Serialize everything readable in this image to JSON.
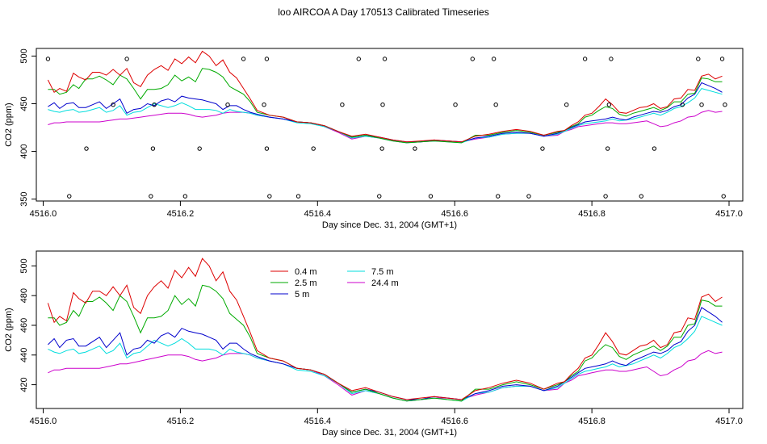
{
  "title": "loo AIRCOA A  Day 170513  Calibrated Timeseries",
  "colors": {
    "0.4 m": "#dd0000",
    "2.5 m": "#00aa00",
    "5 m": "#0000cc",
    "7.5 m": "#00dddd",
    "24.4 m": "#cc00cc"
  },
  "chart_data": [
    {
      "type": "line",
      "title": "",
      "xlabel": "Day since Dec. 31, 2004 (GMT+1)",
      "ylabel": "CO2 (ppm)",
      "xlim": [
        4515.99,
        4517.02
      ],
      "ylim": [
        348,
        508
      ],
      "xticks": [
        "4516.0",
        "4516.2",
        "4516.4",
        "4516.6",
        "4516.8",
        "4517.0"
      ],
      "yticks": [
        "350",
        "400",
        "450",
        "500"
      ],
      "grid": false,
      "legend": "none",
      "series": [
        {
          "name": "0.4 m",
          "x": [
            4516.007,
            4516.016,
            4516.024,
            4516.034,
            4516.044,
            4516.052,
            4516.062,
            4516.072,
            4516.082,
            4516.092,
            4516.102,
            4516.112,
            4516.122,
            4516.132,
            4516.142,
            4516.152,
            4516.162,
            4516.172,
            4516.182,
            4516.192,
            4516.202,
            4516.212,
            4516.222,
            4516.232,
            4516.242,
            4516.252,
            4516.262,
            4516.272,
            4516.282,
            4516.292,
            4516.302,
            4516.312,
            4516.33,
            4516.35,
            4516.37,
            4516.39,
            4516.41,
            4516.43,
            4516.45,
            4516.47,
            4516.49,
            4516.51,
            4516.53,
            4516.55,
            4516.57,
            4516.59,
            4516.61,
            4516.63,
            4516.65,
            4516.67,
            4516.69,
            4516.71,
            4516.73,
            4516.75,
            4516.76,
            4516.77,
            4516.78,
            4516.79,
            4516.8,
            4516.81,
            4516.82,
            4516.83,
            4516.84,
            4516.85,
            4516.86,
            4516.87,
            4516.88,
            4516.89,
            4516.9,
            4516.91,
            4516.92,
            4516.93,
            4516.94,
            4516.95,
            4516.96,
            4516.97,
            4516.98,
            4516.99
          ],
          "y": [
            475,
            462,
            466,
            463,
            482,
            478,
            475,
            483,
            483,
            480,
            486,
            480,
            487,
            472,
            468,
            480,
            486,
            490,
            485,
            497,
            492,
            499,
            493,
            505,
            500,
            490,
            496,
            483,
            477,
            466,
            455,
            443,
            438,
            436,
            431,
            430,
            427,
            421,
            416,
            418,
            415,
            412,
            410,
            411,
            412,
            411,
            410,
            416,
            418,
            421,
            423,
            421,
            417,
            421,
            422,
            427,
            431,
            438,
            440,
            447,
            455,
            449,
            441,
            440,
            443,
            446,
            447,
            450,
            445,
            447,
            455,
            456,
            465,
            464,
            479,
            481,
            476,
            479
          ]
        },
        {
          "name": "2.5 m",
          "x": [
            4516.007,
            4516.016,
            4516.024,
            4516.034,
            4516.044,
            4516.052,
            4516.062,
            4516.072,
            4516.082,
            4516.092,
            4516.102,
            4516.112,
            4516.122,
            4516.132,
            4516.142,
            4516.152,
            4516.162,
            4516.172,
            4516.182,
            4516.192,
            4516.202,
            4516.212,
            4516.222,
            4516.232,
            4516.242,
            4516.252,
            4516.262,
            4516.272,
            4516.282,
            4516.292,
            4516.302,
            4516.312,
            4516.33,
            4516.35,
            4516.37,
            4516.39,
            4516.41,
            4516.43,
            4516.45,
            4516.47,
            4516.49,
            4516.51,
            4516.53,
            4516.55,
            4516.57,
            4516.59,
            4516.61,
            4516.63,
            4516.65,
            4516.67,
            4516.69,
            4516.71,
            4516.73,
            4516.75,
            4516.76,
            4516.77,
            4516.78,
            4516.79,
            4516.8,
            4516.81,
            4516.82,
            4516.83,
            4516.84,
            4516.85,
            4516.86,
            4516.87,
            4516.88,
            4516.89,
            4516.9,
            4516.91,
            4516.92,
            4516.93,
            4516.94,
            4516.95,
            4516.96,
            4516.97,
            4516.98,
            4516.99
          ],
          "y": [
            465,
            465,
            460,
            462,
            470,
            466,
            476,
            476,
            479,
            475,
            470,
            480,
            476,
            466,
            455,
            465,
            465,
            466,
            470,
            480,
            474,
            478,
            473,
            487,
            486,
            483,
            478,
            468,
            464,
            460,
            452,
            441,
            438,
            436,
            431,
            430,
            427,
            421,
            415,
            417,
            414,
            411,
            409,
            410,
            411,
            410,
            409,
            417,
            417,
            420,
            422,
            420,
            417,
            420,
            422,
            426,
            429,
            436,
            438,
            443,
            447,
            445,
            439,
            437,
            440,
            442,
            444,
            446,
            443,
            446,
            452,
            452,
            460,
            461,
            477,
            476,
            473,
            473
          ]
        },
        {
          "name": "5 m",
          "x": [
            4516.007,
            4516.016,
            4516.024,
            4516.034,
            4516.044,
            4516.052,
            4516.062,
            4516.072,
            4516.082,
            4516.092,
            4516.102,
            4516.112,
            4516.122,
            4516.132,
            4516.142,
            4516.152,
            4516.162,
            4516.172,
            4516.182,
            4516.192,
            4516.202,
            4516.212,
            4516.222,
            4516.232,
            4516.242,
            4516.252,
            4516.262,
            4516.272,
            4516.282,
            4516.292,
            4516.302,
            4516.312,
            4516.33,
            4516.35,
            4516.37,
            4516.39,
            4516.41,
            4516.43,
            4516.45,
            4516.47,
            4516.49,
            4516.51,
            4516.53,
            4516.55,
            4516.57,
            4516.59,
            4516.61,
            4516.63,
            4516.65,
            4516.67,
            4516.69,
            4516.71,
            4516.73,
            4516.75,
            4516.76,
            4516.77,
            4516.78,
            4516.79,
            4516.8,
            4516.81,
            4516.82,
            4516.83,
            4516.84,
            4516.85,
            4516.86,
            4516.87,
            4516.88,
            4516.89,
            4516.9,
            4516.91,
            4516.92,
            4516.93,
            4516.94,
            4516.95,
            4516.96,
            4516.97,
            4516.98,
            4516.99
          ],
          "y": [
            447,
            451,
            445,
            450,
            451,
            446,
            446,
            449,
            452,
            445,
            450,
            455,
            440,
            444,
            445,
            450,
            448,
            453,
            455,
            452,
            458,
            456,
            455,
            454,
            452,
            450,
            444,
            448,
            448,
            444,
            441,
            439,
            436,
            434,
            431,
            430,
            427,
            421,
            415,
            417,
            415,
            412,
            410,
            410,
            412,
            411,
            410,
            414,
            416,
            419,
            420,
            419,
            416,
            419,
            422,
            425,
            428,
            431,
            432,
            433,
            434,
            436,
            434,
            433,
            436,
            438,
            440,
            442,
            441,
            443,
            447,
            449,
            456,
            460,
            472,
            469,
            466,
            462
          ]
        },
        {
          "name": "7.5 m",
          "x": [
            4516.007,
            4516.016,
            4516.024,
            4516.034,
            4516.044,
            4516.052,
            4516.062,
            4516.072,
            4516.082,
            4516.092,
            4516.102,
            4516.112,
            4516.122,
            4516.132,
            4516.142,
            4516.152,
            4516.162,
            4516.172,
            4516.182,
            4516.192,
            4516.202,
            4516.212,
            4516.222,
            4516.232,
            4516.242,
            4516.252,
            4516.262,
            4516.272,
            4516.282,
            4516.292,
            4516.302,
            4516.312,
            4516.33,
            4516.35,
            4516.37,
            4516.39,
            4516.41,
            4516.43,
            4516.45,
            4516.47,
            4516.49,
            4516.51,
            4516.53,
            4516.55,
            4516.57,
            4516.59,
            4516.61,
            4516.63,
            4516.65,
            4516.67,
            4516.69,
            4516.71,
            4516.73,
            4516.75,
            4516.76,
            4516.77,
            4516.78,
            4516.79,
            4516.8,
            4516.81,
            4516.82,
            4516.83,
            4516.84,
            4516.85,
            4516.86,
            4516.87,
            4516.88,
            4516.89,
            4516.9,
            4516.91,
            4516.92,
            4516.93,
            4516.94,
            4516.95,
            4516.96,
            4516.97,
            4516.98,
            4516.99
          ],
          "y": [
            444,
            442,
            441,
            443,
            444,
            441,
            442,
            444,
            446,
            441,
            443,
            448,
            438,
            441,
            442,
            446,
            450,
            448,
            446,
            448,
            451,
            448,
            444,
            444,
            444,
            443,
            440,
            444,
            442,
            441,
            440,
            438,
            436,
            434,
            430,
            429,
            426,
            421,
            414,
            416,
            414,
            411,
            409,
            410,
            411,
            410,
            409,
            414,
            415,
            418,
            419,
            419,
            416,
            418,
            421,
            424,
            427,
            429,
            430,
            431,
            432,
            434,
            432,
            433,
            434,
            436,
            438,
            440,
            438,
            441,
            445,
            447,
            451,
            456,
            466,
            464,
            462,
            460
          ]
        },
        {
          "name": "24.4 m",
          "x": [
            4516.007,
            4516.016,
            4516.024,
            4516.034,
            4516.044,
            4516.052,
            4516.062,
            4516.072,
            4516.082,
            4516.092,
            4516.102,
            4516.112,
            4516.122,
            4516.132,
            4516.142,
            4516.152,
            4516.162,
            4516.172,
            4516.182,
            4516.192,
            4516.202,
            4516.212,
            4516.222,
            4516.232,
            4516.242,
            4516.252,
            4516.262,
            4516.272,
            4516.282,
            4516.292,
            4516.302,
            4516.312,
            4516.33,
            4516.35,
            4516.37,
            4516.39,
            4516.41,
            4516.43,
            4516.45,
            4516.47,
            4516.49,
            4516.51,
            4516.53,
            4516.55,
            4516.57,
            4516.59,
            4516.61,
            4516.63,
            4516.65,
            4516.67,
            4516.69,
            4516.71,
            4516.73,
            4516.75,
            4516.76,
            4516.77,
            4516.78,
            4516.79,
            4516.8,
            4516.81,
            4516.82,
            4516.83,
            4516.84,
            4516.85,
            4516.86,
            4516.87,
            4516.88,
            4516.89,
            4516.9,
            4516.91,
            4516.92,
            4516.93,
            4516.94,
            4516.95,
            4516.96,
            4516.97,
            4516.98,
            4516.99
          ],
          "y": [
            428,
            430,
            430,
            431,
            431,
            431,
            431,
            431,
            431,
            432,
            433,
            434,
            434,
            435,
            436,
            437,
            438,
            439,
            440,
            440,
            440,
            439,
            437,
            436,
            437,
            438,
            440,
            441,
            441,
            441,
            440,
            438,
            436,
            434,
            431,
            430,
            426,
            420,
            413,
            416,
            414,
            411,
            409,
            410,
            411,
            411,
            410,
            413,
            415,
            418,
            419,
            419,
            416,
            417,
            421,
            423,
            426,
            427,
            428,
            429,
            430,
            430,
            429,
            429,
            430,
            431,
            432,
            429,
            426,
            427,
            430,
            432,
            436,
            437,
            441,
            443,
            441,
            442
          ]
        },
        {
          "name": "",
          "type": "scatter",
          "x": [
            4516.007,
            4516.038,
            4516.063,
            4516.102,
            4516.122,
            4516.157,
            4516.16,
            4516.162,
            4516.207,
            4516.228,
            4516.269,
            4516.292,
            4516.322,
            4516.326,
            4516.326,
            4516.33,
            4516.372,
            4516.394,
            4516.436,
            4516.46,
            4516.49,
            4516.494,
            4516.495,
            4516.498,
            4516.542,
            4516.565,
            4516.601,
            4516.626,
            4516.657,
            4516.66,
            4516.663,
            4516.708,
            4516.728,
            4516.763,
            4516.79,
            4516.82,
            4516.823,
            4516.825,
            4516.828,
            4516.872,
            4516.891,
            4516.932,
            4516.955,
            4516.96,
            4516.99,
            4516.992,
            4516.994
          ],
          "y": [
            497,
            353,
            403,
            449,
            497,
            353,
            403,
            449,
            353,
            403,
            449,
            497,
            449,
            497,
            403,
            353,
            353,
            403,
            449,
            497,
            353,
            403,
            449,
            497,
            403,
            353,
            449,
            497,
            497,
            449,
            353,
            353,
            403,
            449,
            497,
            353,
            403,
            449,
            497,
            353,
            403,
            449,
            497,
            449,
            497,
            353,
            449
          ]
        }
      ]
    },
    {
      "type": "line",
      "title": "",
      "xlabel": "Day since Dec. 31, 2004 (GMT+1)",
      "ylabel": "CO2 (ppm)",
      "xlim": [
        4515.99,
        4517.02
      ],
      "ylim": [
        404,
        510
      ],
      "xticks": [
        "4516.0",
        "4516.2",
        "4516.4",
        "4516.6",
        "4516.8",
        "4517.0"
      ],
      "yticks": [
        "420",
        "440",
        "460",
        "480",
        "500"
      ],
      "grid": false,
      "legend": "top-left",
      "legend_entries": [
        "0.4 m",
        "2.5 m",
        "5 m",
        "7.5 m",
        "24.4 m"
      ],
      "series_ref": "same as chart_data[0] line series"
    }
  ]
}
